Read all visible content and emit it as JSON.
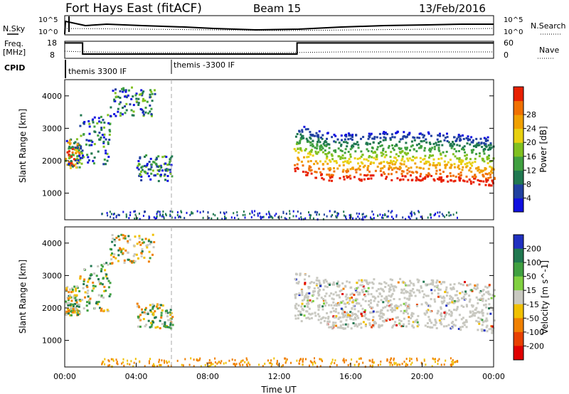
{
  "header": {
    "station": "Fort Hays East (fitACF)",
    "beam": "Beam 15",
    "date": "13/Feb/2016"
  },
  "time_axis": {
    "label": "Time UT",
    "ticks": [
      "00:00",
      "04:00",
      "08:00",
      "12:00",
      "16:00",
      "20:00",
      "00:00"
    ]
  },
  "noise_panel": {
    "left_label": "N.Sky",
    "right_label": "N.Search",
    "left_ticks": [
      "10^5",
      "10^0"
    ],
    "right_ticks": [
      "10^5",
      "10^0"
    ]
  },
  "freq_panel": {
    "left_label_1": "Freq.",
    "left_label_2": "[MHz]",
    "right_label": "Nave",
    "left_ticks": [
      "18",
      "8"
    ],
    "right_ticks": [
      "60",
      "0"
    ],
    "freq_steps": [
      {
        "t0": 0,
        "t1": 1,
        "mhz": 17
      },
      {
        "t0": 1,
        "t1": 13,
        "mhz": 10.5
      },
      {
        "t0": 13,
        "t1": 24,
        "mhz": 17
      }
    ]
  },
  "cpid": {
    "label": "CPID",
    "segments": [
      "themis 3300 IF",
      "themis -3300 IF"
    ],
    "change_hour": 6
  },
  "power_panel": {
    "ylabel": "Slant Range [km]",
    "yticks": [
      "1000",
      "2000",
      "3000",
      "4000"
    ],
    "colorbar_label": "Power [dB]",
    "colorbar_ticks": [
      "4",
      "8",
      "12",
      "16",
      "20",
      "24",
      "28"
    ],
    "colors": [
      "#1010e0",
      "#2040a0",
      "#207850",
      "#40a040",
      "#80c020",
      "#e8d010",
      "#f0a000",
      "#f07000",
      "#e82000"
    ]
  },
  "velocity_panel": {
    "ylabel": "Slant Range [km]",
    "yticks": [
      "1000",
      "2000",
      "3000",
      "4000"
    ],
    "colorbar_label": "Velocity [m s^-1]",
    "colorbar_ticks": [
      "200",
      "100",
      "50",
      "15",
      "-15",
      "-50",
      "-100",
      "-200"
    ],
    "colors": [
      "#2030c0",
      "#207850",
      "#40a040",
      "#80d040",
      "#c8c8c0",
      "#f0c000",
      "#f08000",
      "#e84000",
      "#e00000"
    ]
  },
  "chart_data": {
    "type": "heatmap",
    "x_range_hours": [
      0,
      24
    ],
    "y_range_km": [
      180,
      4500
    ],
    "scatter_regions": [
      {
        "name": "",
        "t": [
          0,
          0.8
        ],
        "r": [
          1800,
          2700
        ]
      },
      {
        "name": "",
        "t": [
          0.8,
          2.5
        ],
        "r": [
          1900,
          3500
        ]
      },
      {
        "name": "",
        "t": [
          2.5,
          5
        ],
        "r": [
          3400,
          4300
        ]
      },
      {
        "name": "",
        "t": [
          4,
          6
        ],
        "r": [
          1400,
          2200
        ]
      },
      {
        "name": "",
        "t": [
          12.8,
          24
        ],
        "r": [
          1100,
          2800
        ]
      }
    ]
  }
}
